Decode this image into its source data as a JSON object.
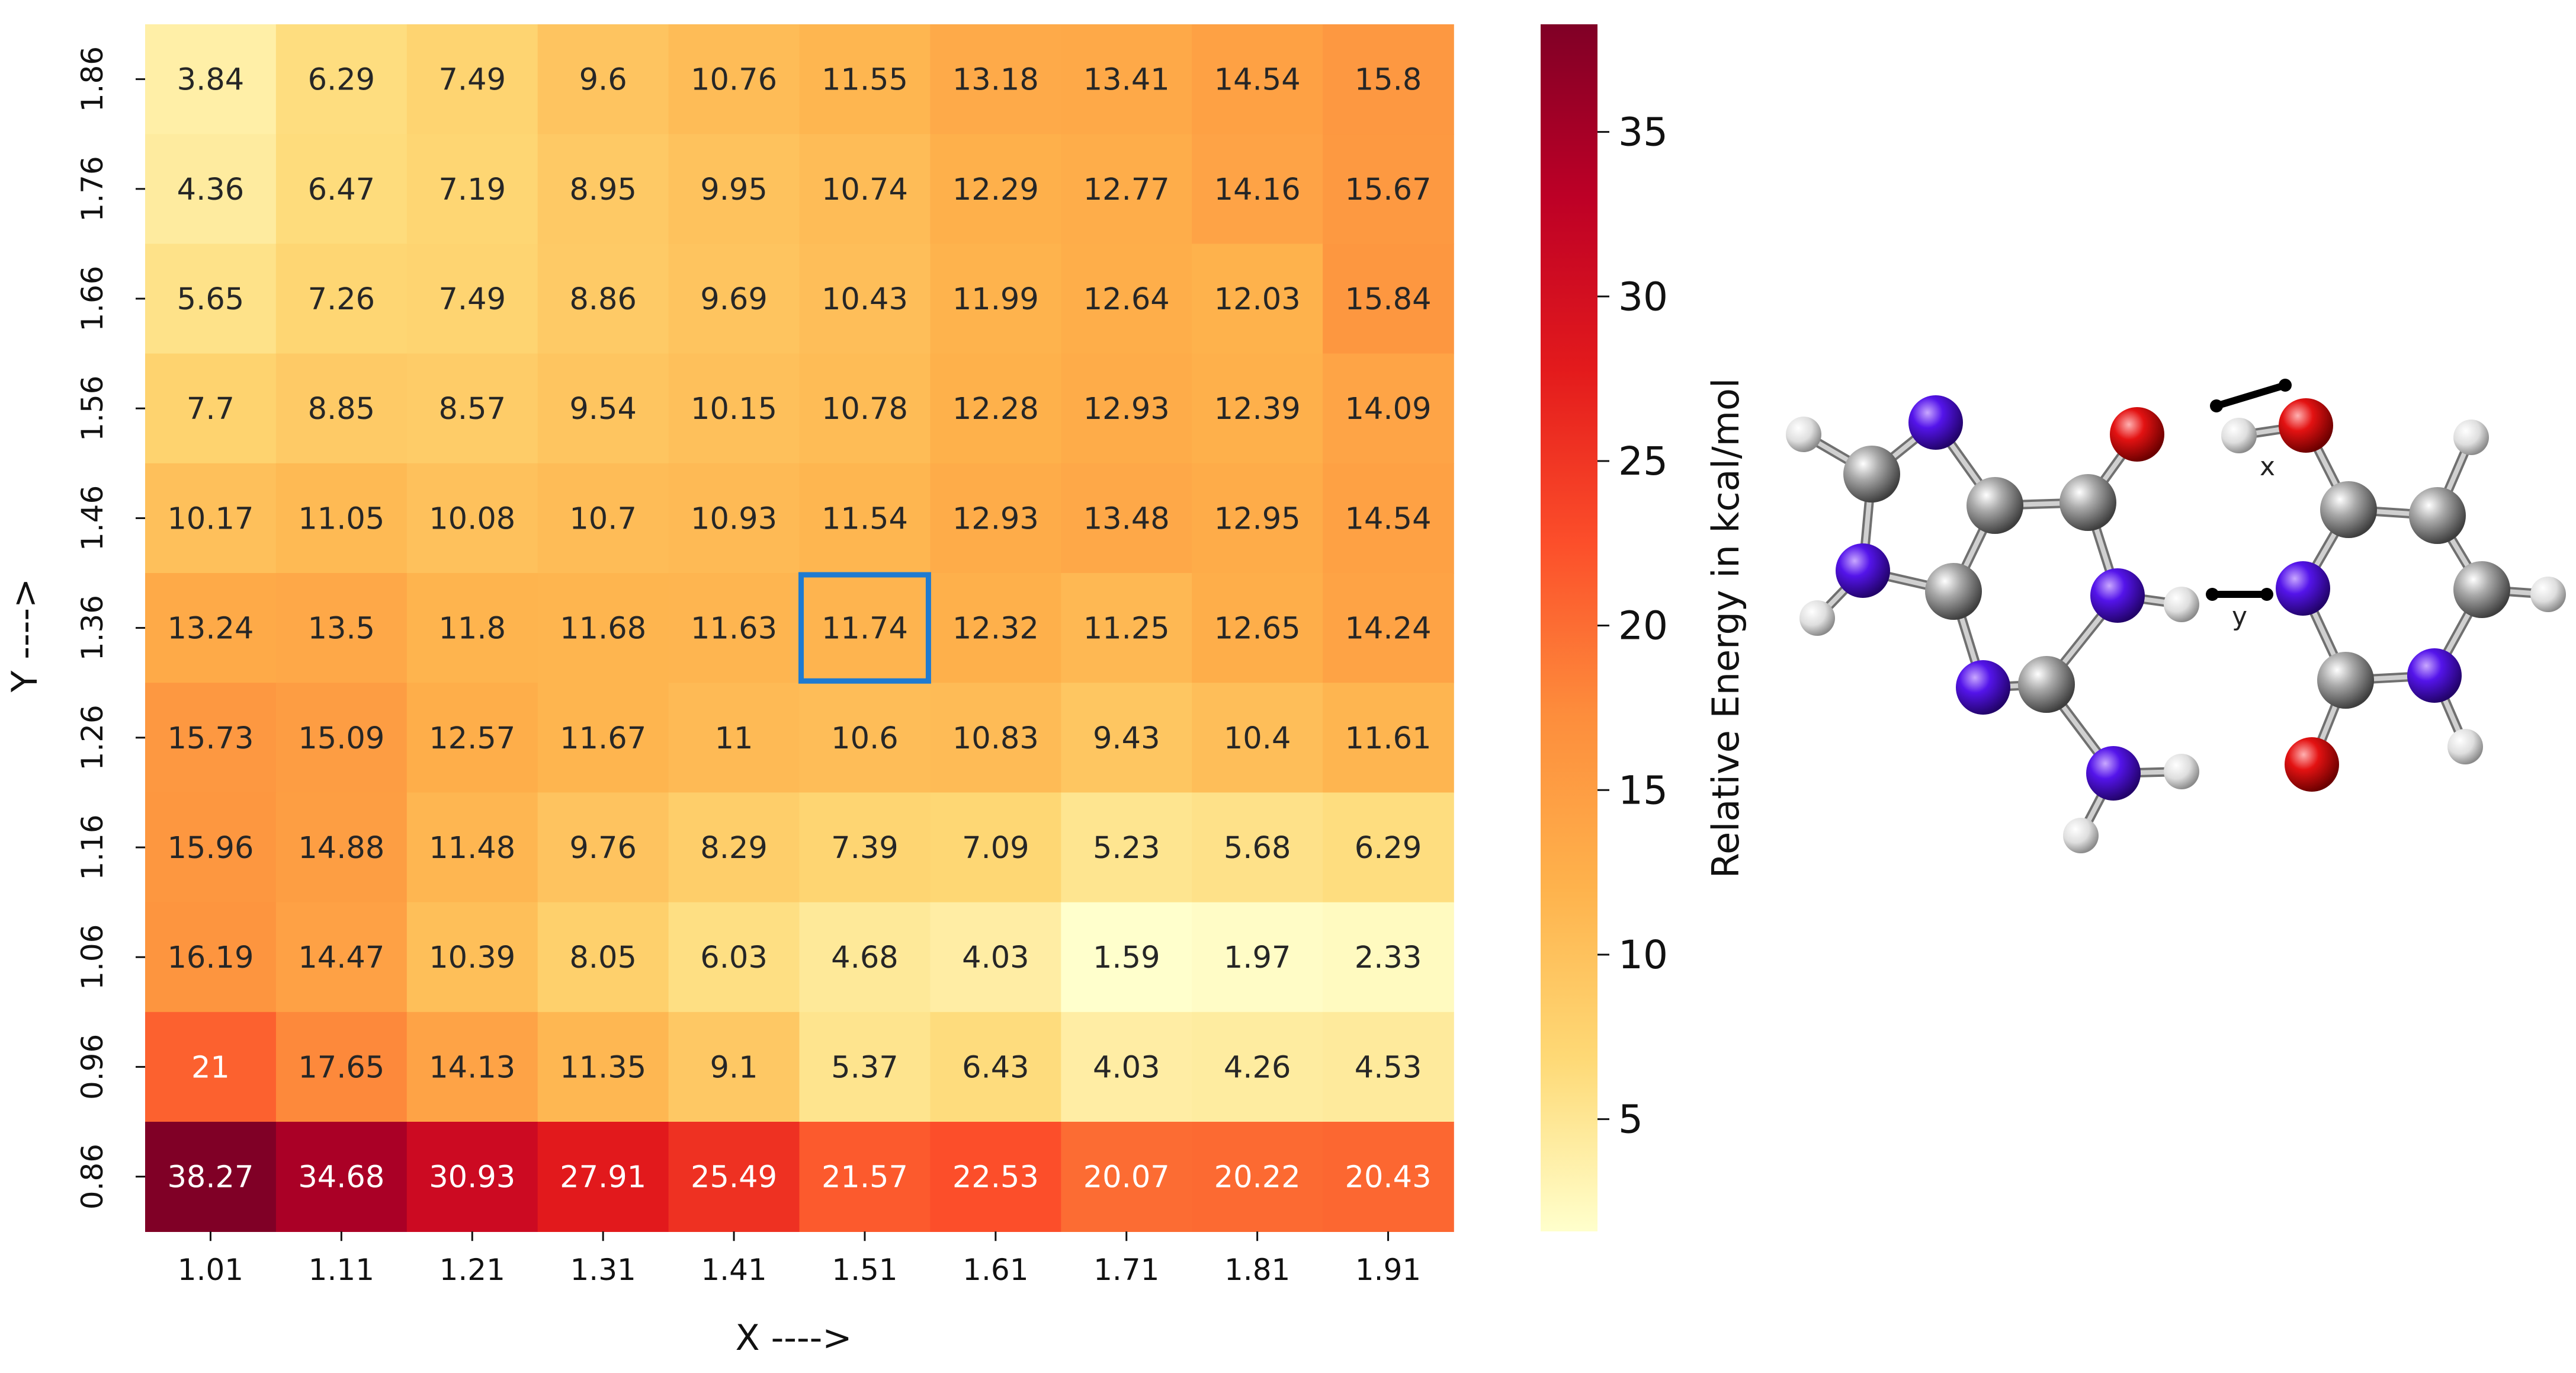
{
  "chart_data": {
    "type": "heatmap",
    "title": "",
    "xlabel": "X ---->",
    "ylabel": "Y ---->",
    "x_ticks": [
      "1.01",
      "1.11",
      "1.21",
      "1.31",
      "1.41",
      "1.51",
      "1.61",
      "1.71",
      "1.81",
      "1.91"
    ],
    "y_ticks": [
      "1.86",
      "1.76",
      "1.66",
      "1.56",
      "1.46",
      "1.36",
      "1.26",
      "1.16",
      "1.06",
      "0.96",
      "0.86"
    ],
    "values": [
      [
        "3.84",
        "6.29",
        "7.49",
        "9.6",
        "10.76",
        "11.55",
        "13.18",
        "13.41",
        "14.54",
        "15.8"
      ],
      [
        "4.36",
        "6.47",
        "7.19",
        "8.95",
        "9.95",
        "10.74",
        "12.29",
        "12.77",
        "14.16",
        "15.67"
      ],
      [
        "5.65",
        "7.26",
        "7.49",
        "8.86",
        "9.69",
        "10.43",
        "11.99",
        "12.64",
        "12.03",
        "15.84"
      ],
      [
        "7.7",
        "8.85",
        "8.57",
        "9.54",
        "10.15",
        "10.78",
        "12.28",
        "12.93",
        "12.39",
        "14.09"
      ],
      [
        "10.17",
        "11.05",
        "10.08",
        "10.7",
        "10.93",
        "11.54",
        "12.93",
        "13.48",
        "12.95",
        "14.54"
      ],
      [
        "13.24",
        "13.5",
        "11.8",
        "11.68",
        "11.63",
        "11.74",
        "12.32",
        "11.25",
        "12.65",
        "14.24"
      ],
      [
        "15.73",
        "15.09",
        "12.57",
        "11.67",
        "11",
        "10.6",
        "10.83",
        "9.43",
        "10.4",
        "11.61"
      ],
      [
        "15.96",
        "14.88",
        "11.48",
        "9.76",
        "8.29",
        "7.39",
        "7.09",
        "5.23",
        "5.68",
        "6.29"
      ],
      [
        "16.19",
        "14.47",
        "10.39",
        "8.05",
        "6.03",
        "4.68",
        "4.03",
        "1.59",
        "1.97",
        "2.33"
      ],
      [
        "21",
        "17.65",
        "14.13",
        "11.35",
        "9.1",
        "5.37",
        "6.43",
        "4.03",
        "4.26",
        "4.53"
      ],
      [
        "38.27",
        "34.68",
        "30.93",
        "27.91",
        "25.49",
        "21.57",
        "22.53",
        "20.07",
        "20.22",
        "20.43"
      ]
    ],
    "highlight_cell": {
      "x": "1.51",
      "y": "1.36"
    },
    "highlight_color": "#1f7bd1",
    "colorbar": {
      "label": "Relative Energy in kcal/mol",
      "range": [
        1.59,
        38.27
      ],
      "ticks": [
        "5",
        "10",
        "15",
        "20",
        "25",
        "30",
        "35"
      ],
      "colormap": "YlOrRd",
      "stops": [
        "#ffffcc",
        "#fed976",
        "#feb24c",
        "#fd8d3c",
        "#fc4e2a",
        "#e31a1c",
        "#bd0026",
        "#800026"
      ]
    }
  },
  "molecule": {
    "bond_labels": {
      "x": "x",
      "y": "y"
    },
    "atom_colors": {
      "carbon": "#8f8f8f",
      "nitrogen": "#4b10d8",
      "oxygen": "#d80f0f",
      "hydrogen": "#e2e2e2"
    }
  }
}
